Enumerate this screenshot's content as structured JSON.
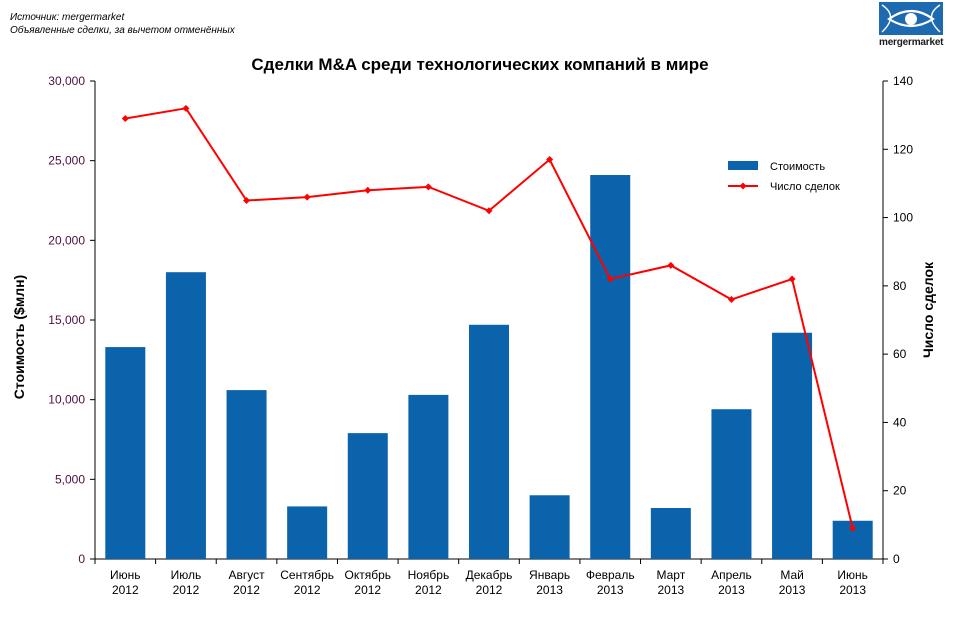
{
  "header": {
    "source_line": "Источник: mergermarket",
    "note_line": "Объявленные сделки, за вычетом отменённых",
    "logo_text": "mergermarket"
  },
  "colors": {
    "bar": "#0b63ab",
    "line": "#ff0000",
    "logo_bg": "#1e6ab0",
    "left_tick_text": "#4b1040"
  },
  "chart_data": {
    "type": "bar",
    "title": "Сделки M&A среди технологических компаний в мире",
    "categories": [
      [
        "Июнь",
        "2012"
      ],
      [
        "Июль",
        "2012"
      ],
      [
        "Август",
        "2012"
      ],
      [
        "Сентябрь",
        "2012"
      ],
      [
        "Октябрь",
        "2012"
      ],
      [
        "Ноябрь",
        "2012"
      ],
      [
        "Декабрь",
        "2012"
      ],
      [
        "Январь",
        "2013"
      ],
      [
        "Февраль",
        "2013"
      ],
      [
        "Март",
        "2013"
      ],
      [
        "Апрель",
        "2013"
      ],
      [
        "Май",
        "2013"
      ],
      [
        "Июнь",
        "2013"
      ]
    ],
    "series": [
      {
        "name": "Стоимость",
        "type": "bar",
        "axis": "left",
        "values": [
          13300,
          18000,
          10600,
          3300,
          7900,
          10300,
          14700,
          4000,
          24100,
          3200,
          9400,
          14200,
          2400
        ]
      },
      {
        "name": "Число сделок",
        "type": "line",
        "axis": "right",
        "values": [
          129,
          132,
          105,
          106,
          108,
          109,
          102,
          117,
          82,
          86,
          76,
          82,
          9
        ]
      }
    ],
    "ylabel": "Стоимость ($млн)",
    "y2label": "Число сделок",
    "ylim": [
      0,
      30000
    ],
    "y2lim": [
      0,
      140
    ],
    "yticks": [
      "0",
      "5,000",
      "10,000",
      "15,000",
      "20,000",
      "25,000",
      "30,000"
    ],
    "y2ticks": [
      "0",
      "20",
      "40",
      "60",
      "80",
      "100",
      "120",
      "140"
    ],
    "legend": [
      "Стоимость",
      "Число сделок"
    ],
    "legend_position": "top-right",
    "grid": false
  }
}
